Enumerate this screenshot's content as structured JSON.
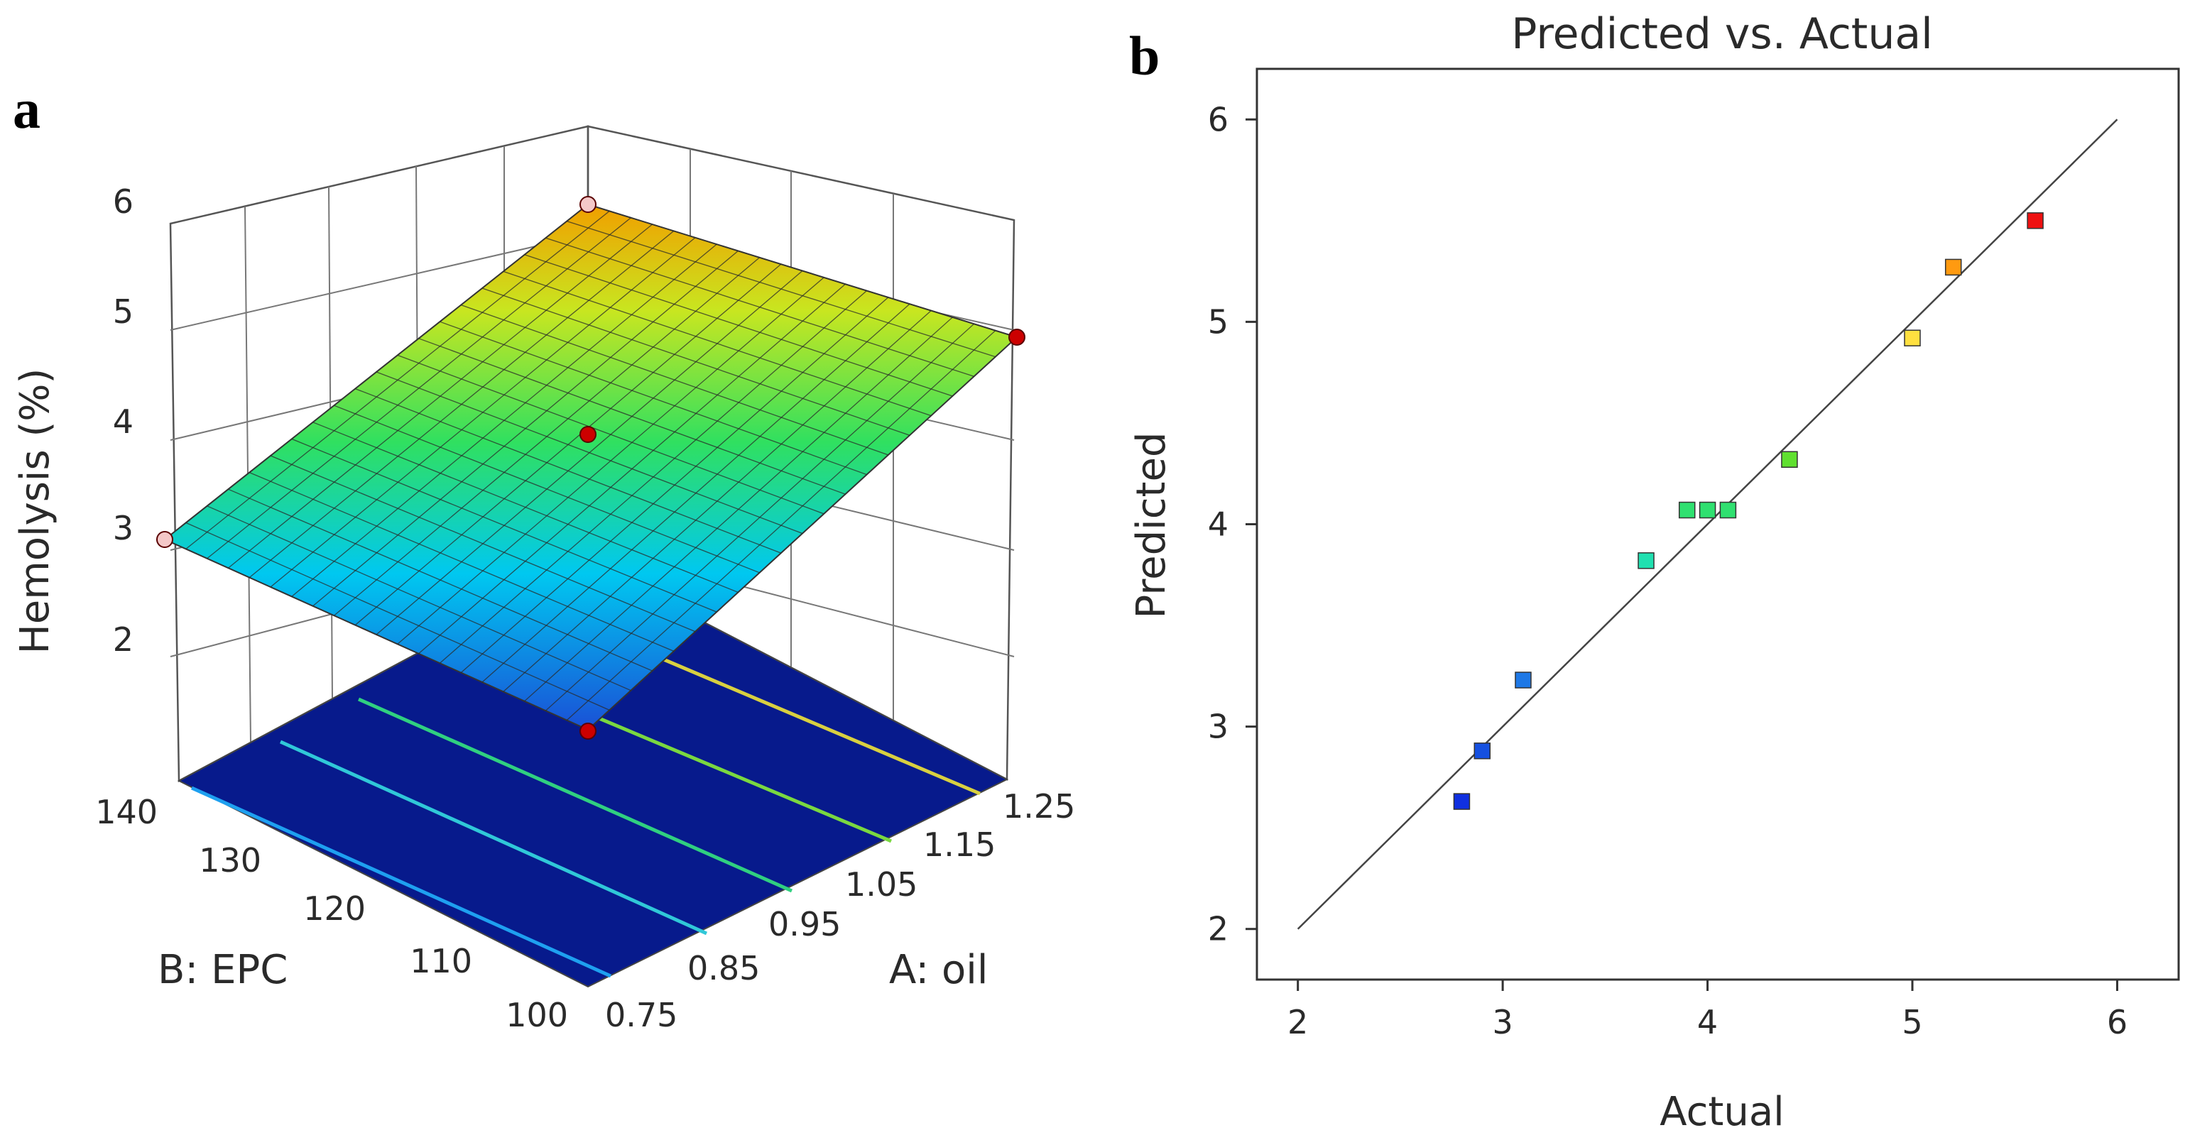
{
  "panels": {
    "a": "a",
    "b": "b"
  },
  "chart_data": [
    {
      "type": "surface",
      "panel": "a",
      "zlabel": "Hemolysis (%)",
      "xlabel": "A: oil",
      "ylabel": "B: EPC",
      "z_ticks": [
        "2",
        "3",
        "4",
        "5",
        "6"
      ],
      "x_ticks": [
        "0.75",
        "0.85",
        "0.95",
        "1.05",
        "1.15",
        "1.25"
      ],
      "y_ticks": [
        "100",
        "110",
        "120",
        "130",
        "140"
      ],
      "xlim": [
        0.75,
        1.25
      ],
      "ylim": [
        100,
        140
      ],
      "zlim": [
        1.5,
        6
      ],
      "surface_corners": [
        {
          "oil": 0.75,
          "epc": 100,
          "hemolysis": 2.8
        },
        {
          "oil": 1.25,
          "epc": 100,
          "hemolysis": 4.8
        },
        {
          "oil": 0.75,
          "epc": 140,
          "hemolysis": 3.0
        },
        {
          "oil": 1.25,
          "epc": 140,
          "hemolysis": 5.6
        }
      ],
      "design_points": [
        {
          "oil": 0.75,
          "epc": 100,
          "hemolysis": 2.8,
          "color": "#cc0000"
        },
        {
          "oil": 1.0,
          "epc": 120,
          "hemolysis": 4.0,
          "color": "#cc0000"
        },
        {
          "oil": 1.25,
          "epc": 100,
          "hemolysis": 4.9,
          "color": "#cc0000"
        },
        {
          "oil": 0.75,
          "epc": 140,
          "hemolysis": 2.9,
          "color": "#f4c8c8"
        },
        {
          "oil": 1.25,
          "epc": 140,
          "hemolysis": 5.6,
          "color": "#f4c8c8"
        }
      ],
      "colormap": [
        "#1a4fd6",
        "#00c8f0",
        "#30e060",
        "#c8e620",
        "#f0a000"
      ]
    },
    {
      "type": "scatter",
      "panel": "b",
      "title": "Predicted vs. Actual",
      "xlabel": "Actual",
      "ylabel": "Predicted",
      "xlim": [
        1.8,
        6.3
      ],
      "ylim": [
        1.75,
        6.25
      ],
      "x_ticks": [
        "2",
        "3",
        "4",
        "5",
        "6"
      ],
      "y_ticks": [
        "2",
        "3",
        "4",
        "5",
        "6"
      ],
      "reference_line": {
        "from": [
          2,
          2
        ],
        "to": [
          6,
          6
        ]
      },
      "points": [
        {
          "x": 2.8,
          "y": 2.63,
          "color": "#1030e0"
        },
        {
          "x": 2.9,
          "y": 2.88,
          "color": "#1550e0"
        },
        {
          "x": 3.1,
          "y": 3.23,
          "color": "#1e78e6"
        },
        {
          "x": 3.7,
          "y": 3.82,
          "color": "#20e0b0"
        },
        {
          "x": 3.9,
          "y": 4.07,
          "color": "#30e070"
        },
        {
          "x": 4.0,
          "y": 4.07,
          "color": "#30e070"
        },
        {
          "x": 4.1,
          "y": 4.07,
          "color": "#30e070"
        },
        {
          "x": 4.4,
          "y": 4.32,
          "color": "#60e030"
        },
        {
          "x": 5.0,
          "y": 4.92,
          "color": "#ffe040"
        },
        {
          "x": 5.2,
          "y": 5.27,
          "color": "#ff9a10"
        },
        {
          "x": 5.6,
          "y": 5.5,
          "color": "#ee1010"
        }
      ]
    }
  ]
}
